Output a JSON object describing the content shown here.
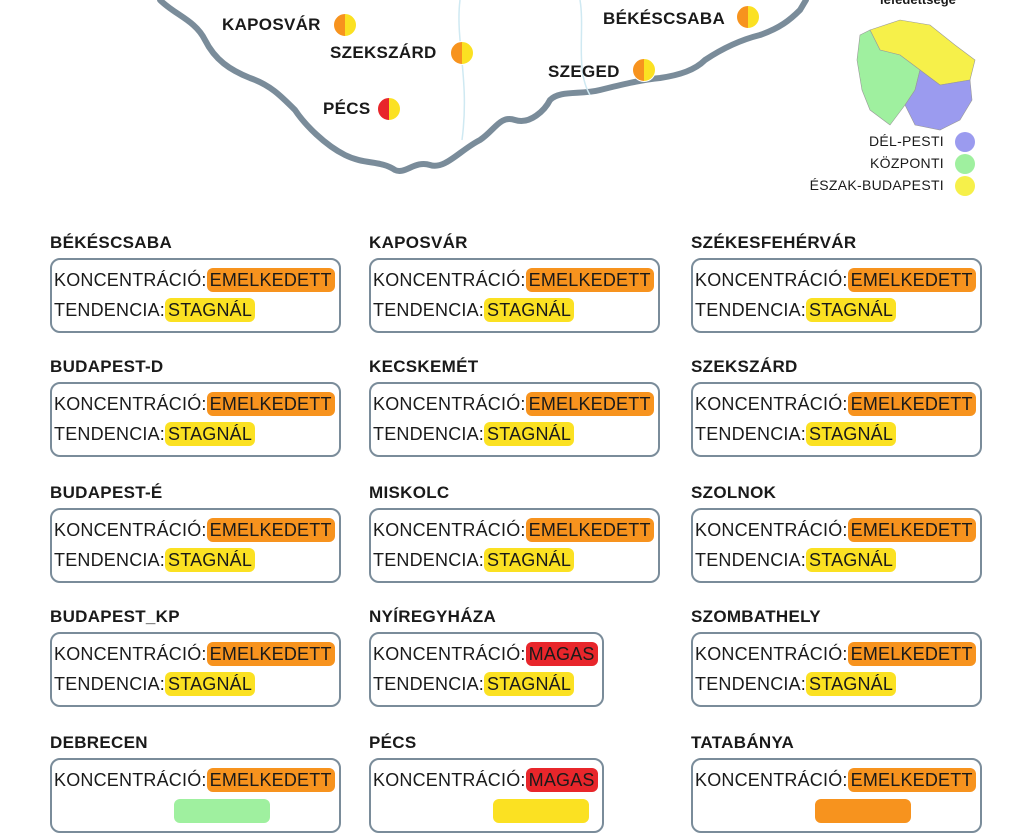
{
  "map": {
    "cities": [
      {
        "label": "KAPOSVÁR",
        "colors": [
          "#f7931e",
          "#fbe122"
        ]
      },
      {
        "label": "SZEKSZÁRD",
        "colors": [
          "#f7931e",
          "#fbe122"
        ]
      },
      {
        "label": "PÉCS",
        "colors": [
          "#e8262b",
          "#fbe122"
        ]
      },
      {
        "label": "BÉKÉSCSABA",
        "colors": [
          "#f7931e",
          "#fbe122"
        ]
      },
      {
        "label": "SZEGED",
        "colors": [
          "#f7931e",
          "#fbe122"
        ]
      }
    ],
    "legend": {
      "title": "lefedettsége",
      "items": [
        {
          "label": "DÉL-PESTI",
          "color": "#9b9bef"
        },
        {
          "label": "KÖZPONTI",
          "color": "#9ff09f"
        },
        {
          "label": "ÉSZAK-BUDAPESTI",
          "color": "#f6f04a"
        }
      ]
    }
  },
  "cards": [
    {
      "city": "BÉKÉSCSABA",
      "concentration": {
        "label": "KONCENTRÁCIÓ:",
        "value": "EMELKEDETT",
        "color": "#f7931e"
      },
      "tendency": {
        "label": "TENDENCIA:",
        "value": "STAGNÁL",
        "color": "#fbe122"
      }
    },
    {
      "city": "KAPOSVÁR",
      "concentration": {
        "label": "KONCENTRÁCIÓ:",
        "value": "EMELKEDETT",
        "color": "#f7931e"
      },
      "tendency": {
        "label": "TENDENCIA:",
        "value": "STAGNÁL",
        "color": "#fbe122"
      }
    },
    {
      "city": "SZÉKESFEHÉRVÁR",
      "concentration": {
        "label": "KONCENTRÁCIÓ:",
        "value": "EMELKEDETT",
        "color": "#f7931e"
      },
      "tendency": {
        "label": "TENDENCIA:",
        "value": "STAGNÁL",
        "color": "#fbe122"
      }
    },
    {
      "city": "BUDAPEST-D",
      "concentration": {
        "label": "KONCENTRÁCIÓ:",
        "value": "EMELKEDETT",
        "color": "#f7931e"
      },
      "tendency": {
        "label": "TENDENCIA:",
        "value": "STAGNÁL",
        "color": "#fbe122"
      }
    },
    {
      "city": "KECSKEMÉT",
      "concentration": {
        "label": "KONCENTRÁCIÓ:",
        "value": "EMELKEDETT",
        "color": "#f7931e"
      },
      "tendency": {
        "label": "TENDENCIA:",
        "value": "STAGNÁL",
        "color": "#fbe122"
      }
    },
    {
      "city": "SZEKSZÁRD",
      "concentration": {
        "label": "KONCENTRÁCIÓ:",
        "value": "EMELKEDETT",
        "color": "#f7931e"
      },
      "tendency": {
        "label": "TENDENCIA:",
        "value": "STAGNÁL",
        "color": "#fbe122"
      }
    },
    {
      "city": "BUDAPEST-É",
      "concentration": {
        "label": "KONCENTRÁCIÓ:",
        "value": "EMELKEDETT",
        "color": "#f7931e"
      },
      "tendency": {
        "label": "TENDENCIA:",
        "value": "STAGNÁL",
        "color": "#fbe122"
      }
    },
    {
      "city": "MISKOLC",
      "concentration": {
        "label": "KONCENTRÁCIÓ:",
        "value": "EMELKEDETT",
        "color": "#f7931e"
      },
      "tendency": {
        "label": "TENDENCIA:",
        "value": "STAGNÁL",
        "color": "#fbe122"
      }
    },
    {
      "city": "SZOLNOK",
      "concentration": {
        "label": "KONCENTRÁCIÓ:",
        "value": "EMELKEDETT",
        "color": "#f7931e"
      },
      "tendency": {
        "label": "TENDENCIA:",
        "value": "STAGNÁL",
        "color": "#fbe122"
      }
    },
    {
      "city": "BUDAPEST_KP",
      "concentration": {
        "label": "KONCENTRÁCIÓ:",
        "value": "EMELKEDETT",
        "color": "#f7931e"
      },
      "tendency": {
        "label": "TENDENCIA:",
        "value": "STAGNÁL",
        "color": "#fbe122"
      }
    },
    {
      "city": "NYÍREGYHÁZA",
      "concentration": {
        "label": "KONCENTRÁCIÓ:",
        "value": "MAGAS",
        "color": "#e8262b"
      },
      "tendency": {
        "label": "TENDENCIA:",
        "value": "STAGNÁL",
        "color": "#fbe122"
      }
    },
    {
      "city": "SZOMBATHELY",
      "concentration": {
        "label": "KONCENTRÁCIÓ:",
        "value": "EMELKEDETT",
        "color": "#f7931e"
      },
      "tendency": {
        "label": "TENDENCIA:",
        "value": "STAGNÁL",
        "color": "#fbe122"
      }
    },
    {
      "city": "DEBRECEN",
      "concentration": {
        "label": "KONCENTRÁCIÓ:",
        "value": "EMELKEDETT",
        "color": "#f7931e"
      },
      "tendency": {
        "color": "#9ff09f"
      }
    },
    {
      "city": "PÉCS",
      "concentration": {
        "label": "KONCENTRÁCIÓ:",
        "value": "MAGAS",
        "color": "#e8262b"
      },
      "tendency": {
        "color": "#fbe122"
      }
    },
    {
      "city": "TATABÁNYA",
      "concentration": {
        "label": "KONCENTRÁCIÓ:",
        "value": "EMELKEDETT",
        "color": "#f7931e"
      },
      "tendency": {
        "color": "#f7931e"
      }
    }
  ]
}
